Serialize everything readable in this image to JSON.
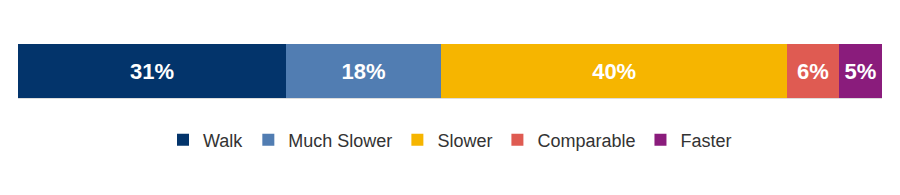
{
  "chart_data": {
    "type": "bar",
    "orientation": "horizontal",
    "stacked": true,
    "data_labels": true,
    "tick_labels": false,
    "legend": "bottom",
    "categories": [
      null
    ],
    "xlim": [
      0,
      100
    ],
    "series": [
      {
        "name": "Walk",
        "color": "#03346b",
        "values": [
          31
        ],
        "value_labels": [
          "31%"
        ]
      },
      {
        "name": "Much Slower",
        "color": "#517db2",
        "values": [
          18
        ],
        "value_labels": [
          "18%"
        ]
      },
      {
        "name": "Slower",
        "color": "#f6b500",
        "values": [
          40
        ],
        "value_labels": [
          "40%"
        ]
      },
      {
        "name": "Comparable",
        "color": "#df5b52",
        "values": [
          6
        ],
        "value_labels": [
          "6%"
        ]
      },
      {
        "name": "Faster",
        "color": "#8a1c7c",
        "values": [
          5
        ],
        "value_labels": [
          "5%"
        ]
      }
    ]
  }
}
